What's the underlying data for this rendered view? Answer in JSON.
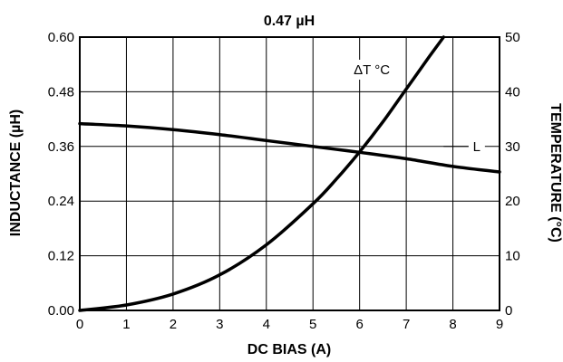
{
  "chart_data": {
    "type": "line",
    "title": "0.47 µH",
    "xlabel": "DC BIAS (A)",
    "ylabel": "INDUCTANCE (µH)",
    "y2label": "TEMPERATURE (°C)",
    "xlim": [
      0,
      9
    ],
    "ylim": [
      0,
      0.6
    ],
    "y2lim": [
      0,
      50
    ],
    "grid": true,
    "x_ticks": [
      "0",
      "1",
      "2",
      "3",
      "4",
      "5",
      "6",
      "7",
      "8",
      "9"
    ],
    "y_ticks": [
      "0.00",
      "0.12",
      "0.24",
      "0.36",
      "0.48",
      "0.60"
    ],
    "y2_ticks": [
      "0",
      "10",
      "20",
      "30",
      "40",
      "50"
    ],
    "series": [
      {
        "name": "L",
        "axis": "left",
        "x": [
          0,
          1,
          2,
          3,
          4,
          5,
          6,
          7,
          8,
          9
        ],
        "values": [
          0.41,
          0.405,
          0.397,
          0.386,
          0.373,
          0.36,
          0.347,
          0.333,
          0.316,
          0.304
        ]
      },
      {
        "name": "ΔT °C",
        "axis": "right",
        "x": [
          0,
          1,
          2,
          3,
          4,
          5,
          5.5,
          6,
          6.5,
          7,
          7.5,
          7.8
        ],
        "values": [
          0,
          1,
          3,
          6.5,
          12,
          19.5,
          24,
          29,
          34.5,
          40.5,
          46.5,
          50
        ]
      }
    ]
  }
}
